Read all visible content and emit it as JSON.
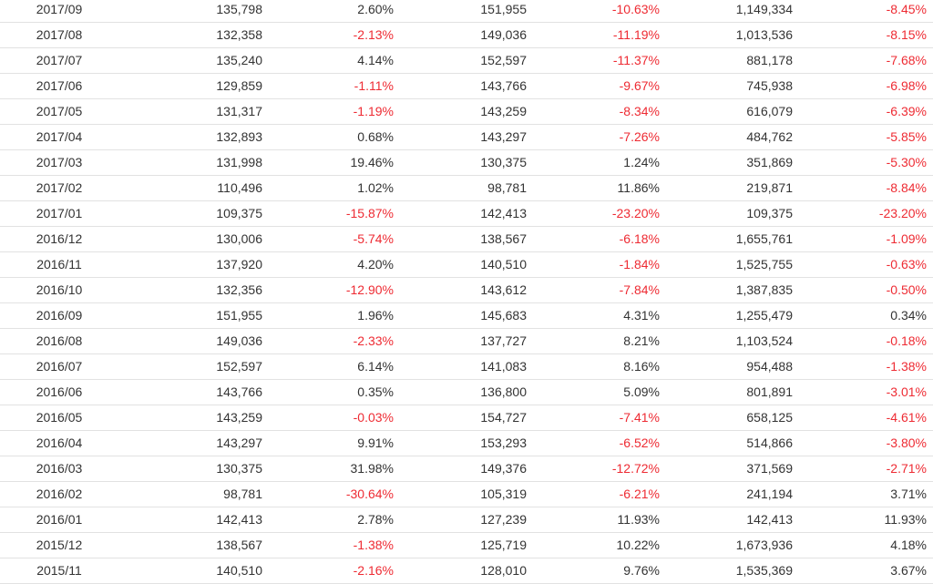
{
  "colors": {
    "text": "#333333",
    "negative": "#ee2b33",
    "row_divider": "#e2e2e2"
  },
  "table": {
    "rows": [
      [
        "2017/09",
        "135,798",
        "2.60%",
        "151,955",
        "-10.63%",
        "1,149,334",
        "-8.45%"
      ],
      [
        "2017/08",
        "132,358",
        "-2.13%",
        "149,036",
        "-11.19%",
        "1,013,536",
        "-8.15%"
      ],
      [
        "2017/07",
        "135,240",
        "4.14%",
        "152,597",
        "-11.37%",
        "881,178",
        "-7.68%"
      ],
      [
        "2017/06",
        "129,859",
        "-1.11%",
        "143,766",
        "-9.67%",
        "745,938",
        "-6.98%"
      ],
      [
        "2017/05",
        "131,317",
        "-1.19%",
        "143,259",
        "-8.34%",
        "616,079",
        "-6.39%"
      ],
      [
        "2017/04",
        "132,893",
        "0.68%",
        "143,297",
        "-7.26%",
        "484,762",
        "-5.85%"
      ],
      [
        "2017/03",
        "131,998",
        "19.46%",
        "130,375",
        "1.24%",
        "351,869",
        "-5.30%"
      ],
      [
        "2017/02",
        "110,496",
        "1.02%",
        "98,781",
        "11.86%",
        "219,871",
        "-8.84%"
      ],
      [
        "2017/01",
        "109,375",
        "-15.87%",
        "142,413",
        "-23.20%",
        "109,375",
        "-23.20%"
      ],
      [
        "2016/12",
        "130,006",
        "-5.74%",
        "138,567",
        "-6.18%",
        "1,655,761",
        "-1.09%"
      ],
      [
        "2016/11",
        "137,920",
        "4.20%",
        "140,510",
        "-1.84%",
        "1,525,755",
        "-0.63%"
      ],
      [
        "2016/10",
        "132,356",
        "-12.90%",
        "143,612",
        "-7.84%",
        "1,387,835",
        "-0.50%"
      ],
      [
        "2016/09",
        "151,955",
        "1.96%",
        "145,683",
        "4.31%",
        "1,255,479",
        "0.34%"
      ],
      [
        "2016/08",
        "149,036",
        "-2.33%",
        "137,727",
        "8.21%",
        "1,103,524",
        "-0.18%"
      ],
      [
        "2016/07",
        "152,597",
        "6.14%",
        "141,083",
        "8.16%",
        "954,488",
        "-1.38%"
      ],
      [
        "2016/06",
        "143,766",
        "0.35%",
        "136,800",
        "5.09%",
        "801,891",
        "-3.01%"
      ],
      [
        "2016/05",
        "143,259",
        "-0.03%",
        "154,727",
        "-7.41%",
        "658,125",
        "-4.61%"
      ],
      [
        "2016/04",
        "143,297",
        "9.91%",
        "153,293",
        "-6.52%",
        "514,866",
        "-3.80%"
      ],
      [
        "2016/03",
        "130,375",
        "31.98%",
        "149,376",
        "-12.72%",
        "371,569",
        "-2.71%"
      ],
      [
        "2016/02",
        "98,781",
        "-30.64%",
        "105,319",
        "-6.21%",
        "241,194",
        "3.71%"
      ],
      [
        "2016/01",
        "142,413",
        "2.78%",
        "127,239",
        "11.93%",
        "142,413",
        "11.93%"
      ],
      [
        "2015/12",
        "138,567",
        "-1.38%",
        "125,719",
        "10.22%",
        "1,673,936",
        "4.18%"
      ],
      [
        "2015/11",
        "140,510",
        "-2.16%",
        "128,010",
        "9.76%",
        "1,535,369",
        "3.67%"
      ]
    ]
  }
}
